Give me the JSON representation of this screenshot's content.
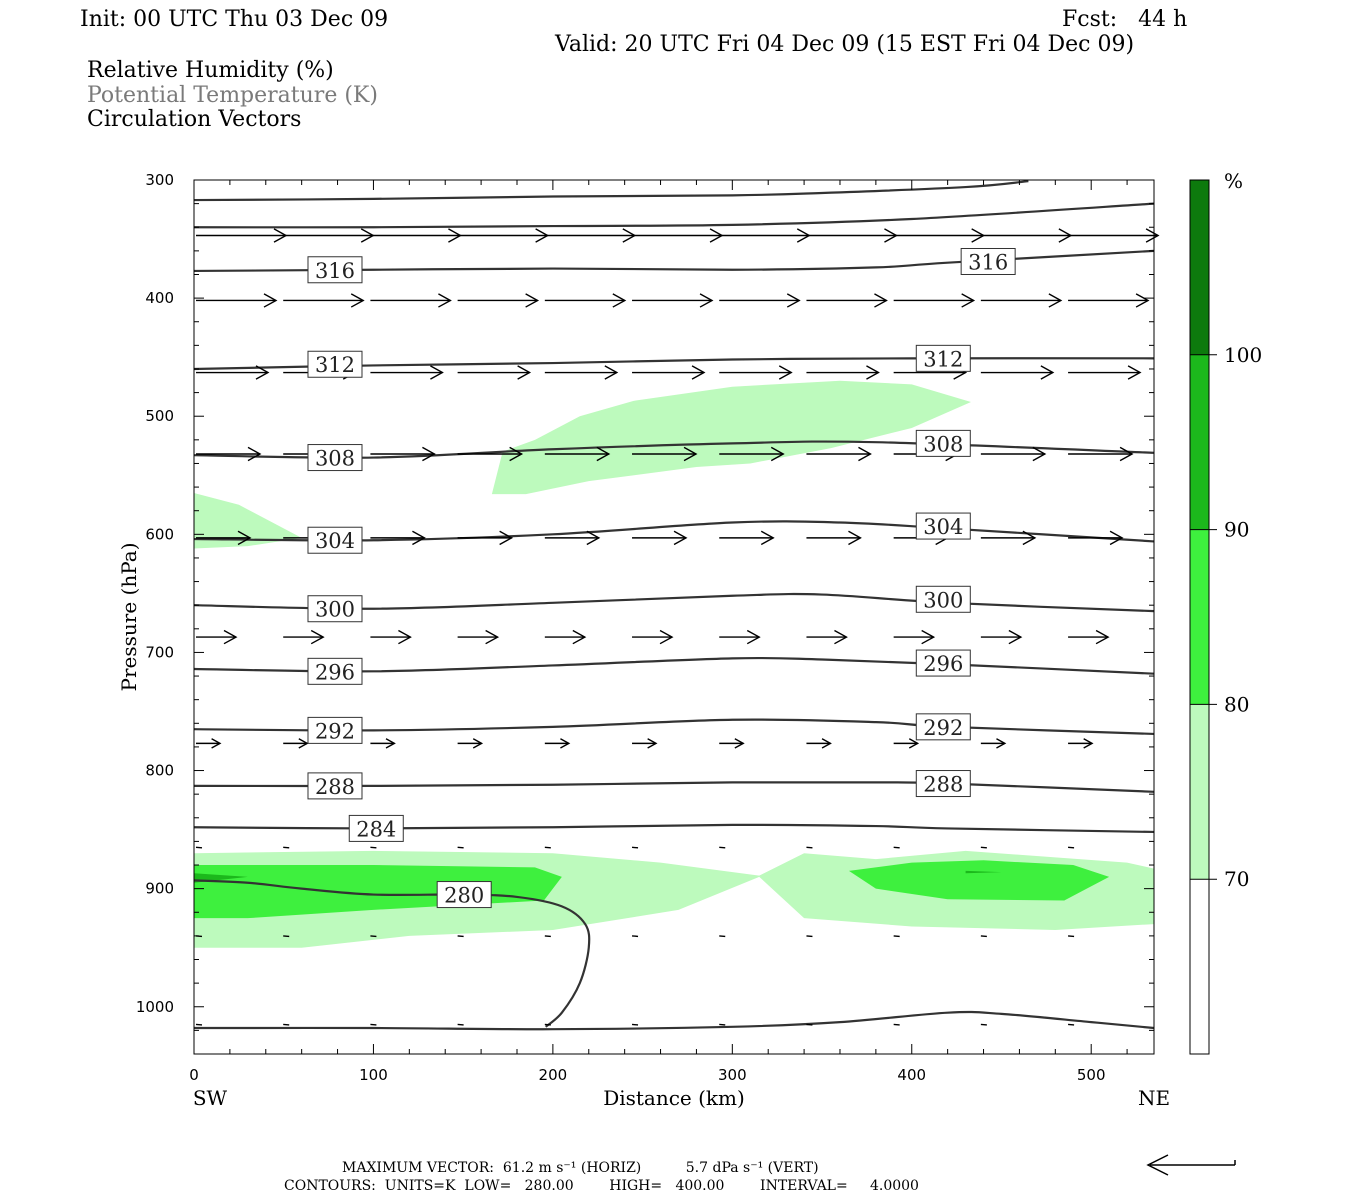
{
  "header": {
    "init": "Init: 00 UTC Thu 03 Dec 09",
    "fcst": "Fcst:   44 h",
    "valid": "Valid: 20 UTC Fri 04 Dec 09 (15 EST Fri 04 Dec 09)",
    "legend_lines": [
      {
        "text": "Relative Humidity (%)",
        "color": "#000000"
      },
      {
        "text": "Potential Temperature (K)",
        "color": "#7a7a7a"
      },
      {
        "text": "Circulation Vectors",
        "color": "#000000"
      }
    ]
  },
  "colors": {
    "rh70": "#bdfabd",
    "rh80": "#3ef03e",
    "rh90": "#1cb81c",
    "rh100": "#0d7a0d",
    "theta_line": "#333333"
  },
  "chart_data": {
    "type": "cross-section",
    "xlabel": "Distance (km)",
    "ylabel": "Pressure (hPa)",
    "xlim": [
      0,
      535
    ],
    "ylim": [
      1040,
      300
    ],
    "x_ticks": [
      0,
      100,
      200,
      300,
      400,
      500
    ],
    "y_ticks": [
      300,
      400,
      500,
      600,
      700,
      800,
      900,
      1000
    ],
    "x_end_labels": {
      "left": "SW",
      "right": "NE"
    },
    "colorbar": {
      "unit": "%",
      "levels": [
        70,
        80,
        90,
        100
      ]
    },
    "theta_contours": [
      {
        "value": 316,
        "label": "316",
        "points": [
          [
            0,
            377
          ],
          [
            100,
            376
          ],
          [
            200,
            375
          ],
          [
            300,
            376
          ],
          [
            380,
            374
          ],
          [
            420,
            370
          ],
          [
            535,
            360
          ]
        ],
        "labels_at": [
          [
            73,
            376
          ],
          [
            437,
            369
          ]
        ]
      },
      {
        "value": 312,
        "label": "312",
        "points": [
          [
            0,
            460
          ],
          [
            100,
            457
          ],
          [
            200,
            455
          ],
          [
            300,
            452
          ],
          [
            400,
            451
          ],
          [
            535,
            451
          ]
        ],
        "labels_at": [
          [
            73,
            456
          ],
          [
            412,
            451
          ]
        ]
      },
      {
        "value": 308,
        "label": "308",
        "points": [
          [
            0,
            533
          ],
          [
            100,
            535
          ],
          [
            200,
            528
          ],
          [
            300,
            523
          ],
          [
            380,
            522
          ],
          [
            535,
            531
          ]
        ],
        "labels_at": [
          [
            73,
            535
          ],
          [
            412,
            523
          ]
        ]
      },
      {
        "value": 304,
        "label": "304",
        "points": [
          [
            0,
            604
          ],
          [
            100,
            605
          ],
          [
            200,
            600
          ],
          [
            300,
            590
          ],
          [
            360,
            590
          ],
          [
            420,
            595
          ],
          [
            535,
            606
          ]
        ],
        "labels_at": [
          [
            73,
            605
          ],
          [
            412,
            593
          ]
        ]
      },
      {
        "value": 300,
        "label": "300",
        "points": [
          [
            0,
            660
          ],
          [
            100,
            663
          ],
          [
            200,
            658
          ],
          [
            300,
            652
          ],
          [
            350,
            651
          ],
          [
            420,
            658
          ],
          [
            535,
            665
          ]
        ],
        "labels_at": [
          [
            73,
            663
          ],
          [
            412,
            655
          ]
        ]
      },
      {
        "value": 296,
        "label": "296",
        "points": [
          [
            0,
            714
          ],
          [
            100,
            716
          ],
          [
            200,
            711
          ],
          [
            300,
            705
          ],
          [
            350,
            706
          ],
          [
            420,
            710
          ],
          [
            535,
            718
          ]
        ],
        "labels_at": [
          [
            73,
            716
          ],
          [
            412,
            709
          ]
        ]
      },
      {
        "value": 292,
        "label": "292",
        "points": [
          [
            0,
            765
          ],
          [
            100,
            766
          ],
          [
            200,
            763
          ],
          [
            300,
            757
          ],
          [
            380,
            759
          ],
          [
            420,
            763
          ],
          [
            535,
            769
          ]
        ],
        "labels_at": [
          [
            73,
            766
          ],
          [
            412,
            763
          ]
        ]
      },
      {
        "value": 288,
        "label": "288",
        "points": [
          [
            0,
            813
          ],
          [
            100,
            813
          ],
          [
            200,
            812
          ],
          [
            300,
            810
          ],
          [
            380,
            810
          ],
          [
            420,
            811
          ],
          [
            535,
            818
          ]
        ],
        "labels_at": [
          [
            73,
            813
          ],
          [
            412,
            811
          ]
        ]
      },
      {
        "value": 284,
        "label": "284",
        "points": [
          [
            0,
            848
          ],
          [
            100,
            849
          ],
          [
            200,
            848
          ],
          [
            300,
            846
          ],
          [
            380,
            847
          ],
          [
            420,
            849
          ],
          [
            535,
            852
          ]
        ],
        "labels_at": [
          [
            96,
            849
          ]
        ]
      },
      {
        "value": 280,
        "label": "280",
        "points": [
          [
            0,
            893
          ],
          [
            30,
            895
          ],
          [
            60,
            900
          ],
          [
            100,
            905
          ],
          [
            150,
            905
          ],
          [
            180,
            907
          ],
          [
            205,
            915
          ],
          [
            218,
            930
          ],
          [
            220,
            950
          ],
          [
            215,
            980
          ],
          [
            205,
            1005
          ],
          [
            196,
            1017
          ]
        ],
        "labels_at": [
          [
            145,
            905
          ]
        ]
      }
    ],
    "upper_contours": [
      {
        "points": [
          [
            0,
            317
          ],
          [
            100,
            316
          ],
          [
            200,
            314
          ],
          [
            300,
            313
          ],
          [
            350,
            311
          ],
          [
            430,
            306
          ],
          [
            465,
            301
          ]
        ]
      },
      {
        "points": [
          [
            0,
            340
          ],
          [
            100,
            340
          ],
          [
            200,
            339
          ],
          [
            300,
            338
          ],
          [
            400,
            333
          ],
          [
            535,
            320
          ]
        ]
      }
    ],
    "bottom_contour": {
      "points": [
        [
          0,
          1018
        ],
        [
          100,
          1018
        ],
        [
          200,
          1019
        ],
        [
          300,
          1017
        ],
        [
          360,
          1013
        ],
        [
          420,
          1005
        ],
        [
          450,
          1006
        ],
        [
          500,
          1013
        ],
        [
          535,
          1018
        ]
      ]
    },
    "rh_regions": [
      {
        "level": 70,
        "points": [
          [
            0,
            565
          ],
          [
            25,
            575
          ],
          [
            60,
            603
          ],
          [
            30,
            610
          ],
          [
            0,
            612
          ]
        ]
      },
      {
        "level": 70,
        "points": [
          [
            0,
            870
          ],
          [
            100,
            868
          ],
          [
            200,
            870
          ],
          [
            260,
            878
          ],
          [
            315,
            889
          ],
          [
            340,
            870
          ],
          [
            380,
            875
          ],
          [
            430,
            868
          ],
          [
            520,
            878
          ],
          [
            535,
            883
          ],
          [
            535,
            930
          ],
          [
            480,
            935
          ],
          [
            400,
            932
          ],
          [
            340,
            925
          ],
          [
            315,
            890
          ],
          [
            270,
            918
          ],
          [
            200,
            935
          ],
          [
            120,
            940
          ],
          [
            60,
            950
          ],
          [
            0,
            950
          ]
        ]
      },
      {
        "level": 70,
        "points": [
          [
            166,
            566
          ],
          [
            172,
            530
          ],
          [
            190,
            520
          ],
          [
            215,
            500
          ],
          [
            245,
            487
          ],
          [
            300,
            475
          ],
          [
            360,
            470
          ],
          [
            400,
            473
          ],
          [
            433,
            488
          ],
          [
            400,
            510
          ],
          [
            355,
            527
          ],
          [
            310,
            540
          ],
          [
            280,
            543
          ],
          [
            220,
            555
          ],
          [
            185,
            566
          ]
        ]
      },
      {
        "level": 80,
        "points": [
          [
            0,
            880
          ],
          [
            100,
            880
          ],
          [
            190,
            882
          ],
          [
            205,
            890
          ],
          [
            195,
            910
          ],
          [
            100,
            918
          ],
          [
            30,
            925
          ],
          [
            0,
            925
          ]
        ]
      },
      {
        "level": 80,
        "points": [
          [
            365,
            885
          ],
          [
            400,
            878
          ],
          [
            440,
            876
          ],
          [
            490,
            880
          ],
          [
            510,
            890
          ],
          [
            485,
            910
          ],
          [
            420,
            909
          ],
          [
            380,
            900
          ]
        ]
      },
      {
        "level": 90,
        "points": [
          [
            0,
            887
          ],
          [
            30,
            890
          ],
          [
            0,
            895
          ]
        ]
      },
      {
        "level": 90,
        "points": [
          [
            430,
            885
          ],
          [
            450,
            886
          ],
          [
            430,
            887
          ]
        ]
      }
    ],
    "vectors": {
      "x_positions": [
        0,
        48.6,
        97.2,
        145.8,
        194.4,
        243,
        291.6,
        340.2,
        388.8,
        437.4,
        486
      ],
      "rows": [
        {
          "p": 347,
          "u": [
            45,
            45,
            45,
            45,
            45,
            45,
            45,
            45,
            45,
            45,
            45
          ]
        },
        {
          "p": 402,
          "u": [
            40,
            40,
            40,
            40,
            40,
            40,
            40,
            40,
            40,
            40,
            40
          ]
        },
        {
          "p": 463,
          "u": [
            36,
            36,
            36,
            36,
            36,
            36,
            36,
            36,
            36,
            36,
            36
          ]
        },
        {
          "p": 532,
          "u": [
            32,
            32,
            32,
            32,
            32,
            32,
            32,
            32,
            32,
            32,
            32
          ]
        },
        {
          "p": 603,
          "u": [
            27,
            27,
            27,
            27,
            27,
            27,
            27,
            27,
            27,
            27,
            27
          ]
        },
        {
          "p": 687,
          "u": [
            20,
            20,
            20,
            20,
            20,
            20,
            20,
            20,
            20,
            20,
            20
          ]
        },
        {
          "p": 777,
          "u": [
            12,
            12,
            12,
            12,
            12,
            12,
            12,
            12,
            12,
            12,
            12
          ]
        },
        {
          "p": 865,
          "u": [
            3,
            3,
            3,
            3,
            3,
            3,
            3,
            3,
            3,
            3,
            3
          ]
        },
        {
          "p": 940,
          "u": [
            3,
            3,
            3,
            3,
            3,
            3,
            3,
            3,
            3,
            3,
            3
          ]
        },
        {
          "p": 1015,
          "u": [
            3,
            3,
            3,
            3,
            3,
            3,
            3,
            3,
            3,
            3,
            3
          ]
        }
      ]
    }
  },
  "footer": {
    "max_vector": "MAXIMUM VECTOR:  61.2 m s⁻¹ (HORIZ)          5.7 dPa s⁻¹ (VERT)",
    "contours": "CONTOURS:  UNITS=K  LOW=   280.00        HIGH=   400.00        INTERVAL=     4.0000"
  }
}
